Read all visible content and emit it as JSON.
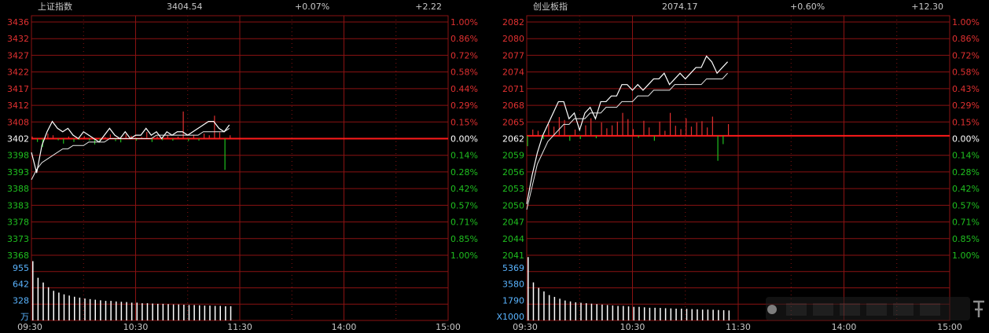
{
  "colors": {
    "grid": "#8a1212",
    "up": "#e03030",
    "down": "#1fbf1f",
    "flat": "#ffffff",
    "volume": "#ffffff",
    "vol_label": "#5ab4ff",
    "header_text": "#c8c8c8",
    "base_line": "#ff1a1a"
  },
  "chart_data": [
    {
      "type": "line",
      "header": {
        "name": "上证指数",
        "price": "3404.54",
        "pct": "+0.07%",
        "change": "+2.22"
      },
      "base": 3402,
      "y_labels": [
        "3436",
        "3432",
        "3427",
        "3422",
        "3417",
        "3412",
        "3408",
        "3402",
        "3398",
        "3393",
        "3388",
        "3383",
        "3378",
        "3373",
        "3368"
      ],
      "ylim": [
        3368,
        3436
      ],
      "pct_labels": [
        "1.00%",
        "0.86%",
        "0.72%",
        "0.58%",
        "0.44%",
        "0.29%",
        "0.15%",
        "0.00%",
        "0.14%",
        "0.28%",
        "0.42%",
        "0.57%",
        "0.71%",
        "0.85%",
        "1.00%"
      ],
      "time_labels": [
        "09:30",
        "10:30",
        "11:30",
        "14:00",
        "15:00"
      ],
      "vol_labels": [
        "955",
        "642",
        "328"
      ],
      "vol_unit": "万",
      "vol_max": 1100,
      "x": [
        0,
        3,
        6,
        9,
        12,
        15,
        18,
        21,
        24,
        27,
        30,
        33,
        36,
        39,
        42,
        45,
        48,
        51,
        54,
        57,
        60,
        63,
        66,
        69,
        72,
        75,
        78,
        81,
        84,
        87,
        90,
        93,
        96,
        99,
        102,
        105,
        108,
        111,
        114
      ],
      "price": [
        3398,
        3392,
        3400,
        3404,
        3407,
        3405,
        3404,
        3405,
        3403,
        3402,
        3404,
        3403,
        3402,
        3401,
        3403,
        3405,
        3403,
        3402,
        3404,
        3402,
        3403,
        3403,
        3405,
        3403,
        3404,
        3402,
        3404,
        3403,
        3404,
        3404,
        3403,
        3404,
        3405,
        3406,
        3407,
        3407,
        3405,
        3404,
        3406
      ],
      "avg": [
        3390,
        3393,
        3395,
        3396,
        3397,
        3398,
        3399,
        3399,
        3400,
        3400,
        3400,
        3401,
        3401,
        3401,
        3401,
        3402,
        3402,
        3402,
        3402,
        3402,
        3402,
        3402,
        3402,
        3402,
        3403,
        3403,
        3403,
        3403,
        3403,
        3403,
        3403,
        3403,
        3403,
        3404,
        3404,
        3404,
        3404,
        3404,
        3405
      ],
      "bars": [
        0.5,
        -0.8,
        -2,
        1.2,
        0.8,
        -0.4,
        -1.2,
        0.5,
        -0.8,
        -0.3,
        0.6,
        -0.5,
        -1.4,
        -0.7,
        0.4,
        1.0,
        -0.6,
        -0.9,
        1.1,
        0.7,
        -0.5,
        0.4,
        1.6,
        -0.8,
        0.6,
        -0.4,
        0.8,
        -0.5,
        0.5,
        6.5,
        -0.6,
        0.9,
        -0.5,
        1.2,
        0.8,
        5.5,
        1.5,
        -7.5,
        0.8
      ],
      "vol": [
        1000,
        720,
        640,
        560,
        500,
        470,
        440,
        420,
        400,
        385,
        370,
        360,
        350,
        340,
        330,
        330,
        320,
        315,
        310,
        300,
        300,
        290,
        290,
        285,
        280,
        280,
        275,
        270,
        270,
        265,
        260,
        260,
        255,
        250,
        250,
        245,
        245,
        240,
        240
      ]
    },
    {
      "type": "line",
      "header": {
        "name": "创业板指",
        "price": "2074.17",
        "pct": "+0.60%",
        "change": "+12.30"
      },
      "base": 2062,
      "y_labels": [
        "2082",
        "2080",
        "2077",
        "2074",
        "2071",
        "2068",
        "2065",
        "2062",
        "2059",
        "2056",
        "2053",
        "2050",
        "2047",
        "2044",
        "2041"
      ],
      "ylim": [
        2041,
        2082
      ],
      "pct_labels": [
        "1.00%",
        "0.86%",
        "0.72%",
        "0.58%",
        "0.43%",
        "0.29%",
        "0.15%",
        "0.00%",
        "0.14%",
        "0.28%",
        "0.42%",
        "0.57%",
        "0.71%",
        "0.85%",
        "1.00%"
      ],
      "time_labels": [
        "09:30",
        "10:30",
        "11:30",
        "14:00",
        "15:00"
      ],
      "vol_labels": [
        "5369",
        "3580",
        "1790"
      ],
      "vol_unit": "X1000",
      "vol_max": 7200,
      "x": [
        0,
        3,
        6,
        9,
        12,
        15,
        18,
        21,
        24,
        27,
        30,
        33,
        36,
        39,
        42,
        45,
        48,
        51,
        54,
        57,
        60,
        63,
        66,
        69,
        72,
        75,
        78,
        81,
        84,
        87,
        90,
        93,
        96,
        99,
        102,
        105,
        108,
        111,
        114
      ],
      "price": [
        2050,
        2055,
        2059,
        2062,
        2064,
        2066,
        2068,
        2068,
        2065,
        2066,
        2063,
        2066,
        2067,
        2065,
        2068,
        2068,
        2069,
        2069,
        2071,
        2071,
        2070,
        2071,
        2070,
        2071,
        2072,
        2072,
        2073,
        2071,
        2072,
        2073,
        2072,
        2073,
        2074,
        2074,
        2076,
        2075,
        2073,
        2074,
        2075
      ],
      "avg": [
        2049,
        2053,
        2057,
        2059,
        2061,
        2062,
        2063,
        2064,
        2064,
        2065,
        2065,
        2065,
        2066,
        2066,
        2066,
        2067,
        2067,
        2067,
        2068,
        2068,
        2068,
        2069,
        2069,
        2069,
        2070,
        2070,
        2070,
        2070,
        2071,
        2071,
        2071,
        2071,
        2071,
        2071,
        2072,
        2072,
        2072,
        2072,
        2073
      ],
      "bars": [
        -2.5,
        1.5,
        1.2,
        -0.8,
        2.8,
        2.2,
        4.5,
        3.8,
        -1.2,
        1.5,
        -0.8,
        2.5,
        4.2,
        -0.6,
        3.2,
        1.8,
        2.5,
        3.4,
        5.5,
        4.0,
        1.6,
        -0.5,
        3.6,
        2.0,
        -1.2,
        3.4,
        1.2,
        5.5,
        2.4,
        1.6,
        4.2,
        2.2,
        3.2,
        3.5,
        2.0,
        4.6,
        -6.0,
        -2.0,
        2.8
      ],
      "vol": [
        7000,
        4200,
        3600,
        3200,
        2800,
        2600,
        2400,
        2200,
        2100,
        2000,
        1950,
        1900,
        1850,
        1800,
        1750,
        1700,
        1650,
        1600,
        1600,
        1550,
        1500,
        1500,
        1450,
        1400,
        1400,
        1380,
        1350,
        1330,
        1300,
        1300,
        1280,
        1250,
        1230,
        1200,
        1200,
        1180,
        1150,
        1130,
        1100
      ]
    }
  ]
}
